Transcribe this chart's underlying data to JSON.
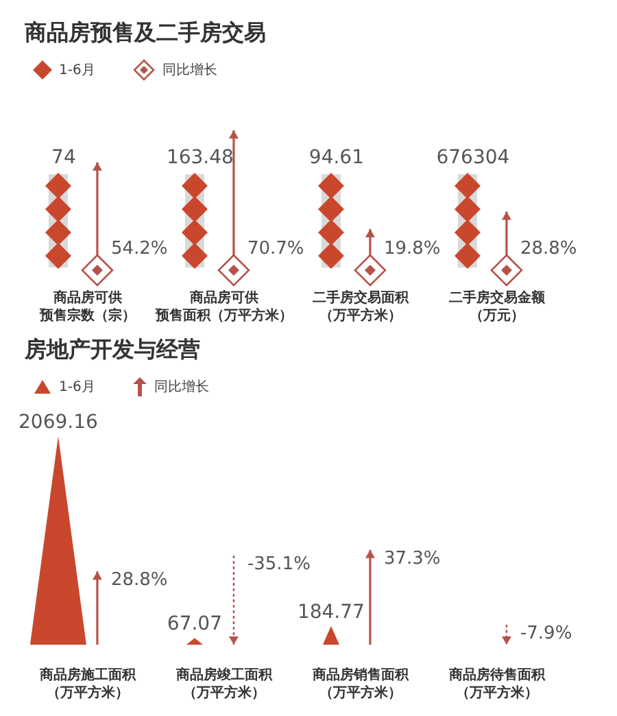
{
  "chart_data": [
    {
      "type": "other",
      "title": "商品房预售及二手房交易",
      "legend": "top left",
      "data_labels": true,
      "categories": [
        "商品房可供预售宗数（宗）",
        "商品房可供预售面积（万平方米）",
        "二手房交易面积（万平方米）",
        "二手房交易金额（万元）"
      ],
      "series": [
        {
          "name": "1-6月",
          "color": "#c9472d",
          "values": [
            74,
            163.48,
            94.61,
            676304
          ]
        },
        {
          "name": "同比增长",
          "color": "#b5524a",
          "values": [
            54.2,
            70.7,
            19.8,
            28.8
          ],
          "value_labels": [
            "54.2%",
            "70.7%",
            "19.8%",
            "28.8%"
          ]
        }
      ]
    },
    {
      "type": "other",
      "title": "房地产开发与经营",
      "legend": "top left",
      "data_labels": true,
      "categories": [
        "商品房施工面积（万平方米）",
        "商品房竣工面积（万平方米）",
        "商品房销售面积（万平方米）",
        "商品房待售面积（万平方米）"
      ],
      "series": [
        {
          "name": "1-6月",
          "color": "#c9472d",
          "values": [
            2069.16,
            67.07,
            184.77,
            null
          ]
        },
        {
          "name": "同比增长",
          "color": "#b5524a",
          "values": [
            28.8,
            -35.1,
            37.3,
            -7.9
          ],
          "value_labels": [
            "28.8%",
            "-35.1%",
            "37.3%",
            "-7.9%"
          ]
        }
      ]
    }
  ]
}
